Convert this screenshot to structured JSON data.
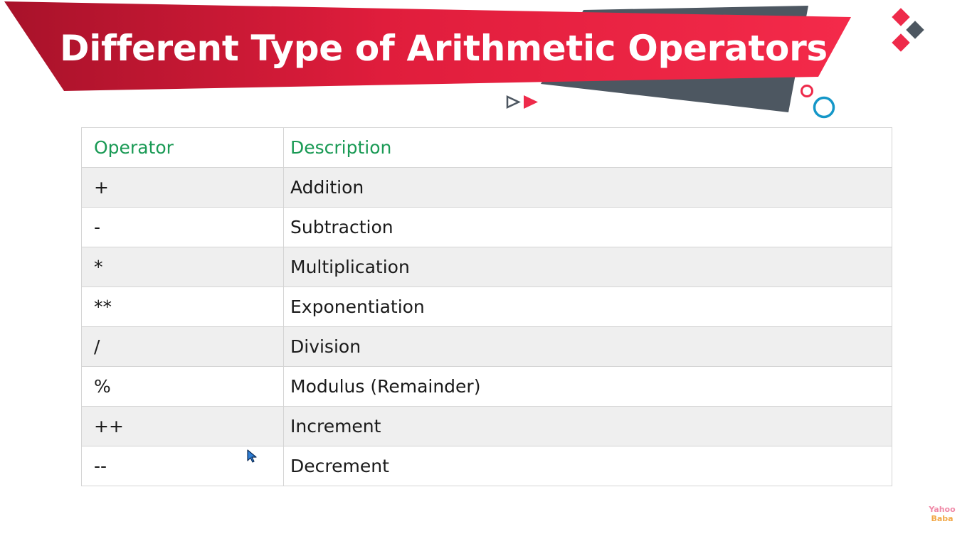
{
  "title": "Different Type of Arithmetic Operators :",
  "table": {
    "headers": {
      "operator": "Operator",
      "description": "Description"
    },
    "rows": [
      {
        "operator": "+",
        "description": "Addition"
      },
      {
        "operator": "-",
        "description": "Subtraction"
      },
      {
        "operator": "*",
        "description": "Multiplication"
      },
      {
        "operator": "**",
        "description": "Exponentiation"
      },
      {
        "operator": "/",
        "description": "Division"
      },
      {
        "operator": "%",
        "description": "Modulus (Remainder)"
      },
      {
        "operator": "++",
        "description": "Increment"
      },
      {
        "operator": "--",
        "description": "Decrement"
      }
    ]
  },
  "watermark": {
    "line1": "Yahoo",
    "line2": "Baba"
  },
  "colors": {
    "banner_red": "#ee1f43",
    "banner_dark_red": "#a8122a",
    "banner_gray": "#4d5761",
    "header_text_green": "#1a9a55",
    "accent_blue": "#1597c8",
    "row_stripe": "#efefef"
  }
}
